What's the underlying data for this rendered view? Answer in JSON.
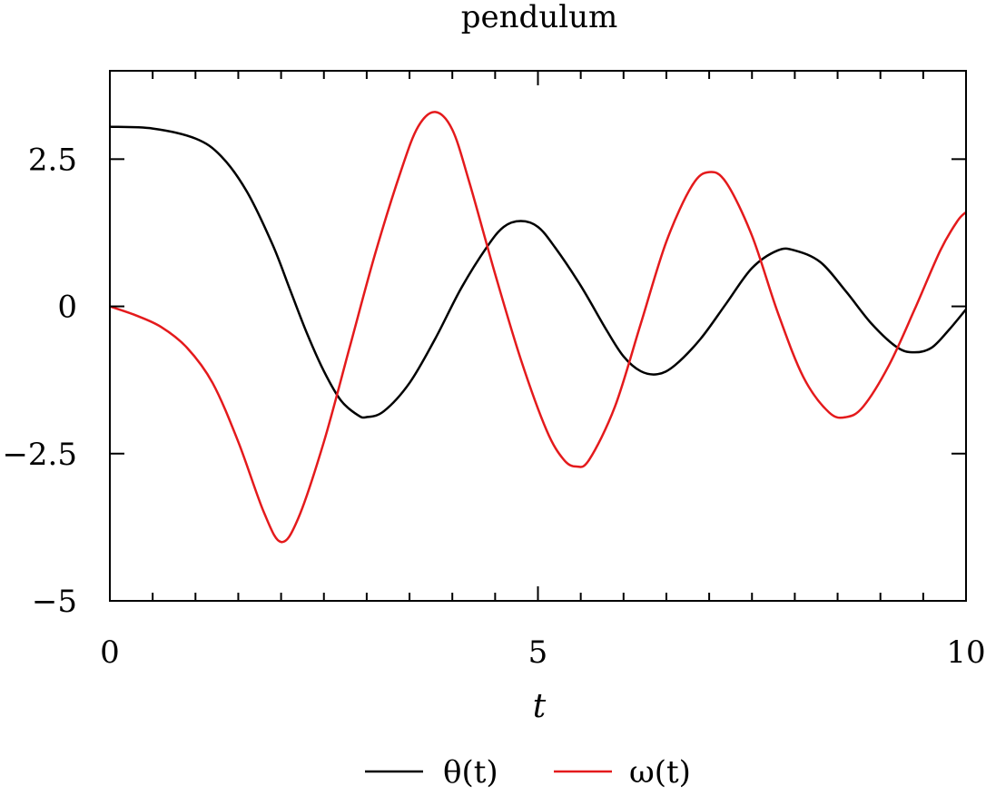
{
  "chart_data": {
    "type": "line",
    "title": "pendulum",
    "xlabel": "t",
    "ylabel": "",
    "xlim": [
      0,
      10
    ],
    "ylim": [
      -5,
      4
    ],
    "xticks": [
      0,
      5,
      10
    ],
    "xtick_labels": [
      "0",
      "5",
      "10"
    ],
    "yticks": [
      -5,
      -2.5,
      0,
      2.5
    ],
    "ytick_labels": [
      "−5",
      "−2.5",
      "0",
      "2.5"
    ],
    "x_minor_step": 0.5,
    "grid": false,
    "legend_position": "bottom",
    "series": [
      {
        "name": "θ(t)",
        "color": "#000000",
        "points": [
          [
            0,
            3.05
          ],
          [
            0.5,
            3.02
          ],
          [
            1.0,
            2.85
          ],
          [
            1.3,
            2.55
          ],
          [
            1.6,
            1.95
          ],
          [
            1.9,
            1.05
          ],
          [
            2.1,
            0.3
          ],
          [
            2.3,
            -0.45
          ],
          [
            2.5,
            -1.1
          ],
          [
            2.7,
            -1.6
          ],
          [
            2.9,
            -1.85
          ],
          [
            3.0,
            -1.88
          ],
          [
            3.2,
            -1.78
          ],
          [
            3.5,
            -1.3
          ],
          [
            3.8,
            -0.55
          ],
          [
            4.1,
            0.3
          ],
          [
            4.4,
            1.0
          ],
          [
            4.6,
            1.35
          ],
          [
            4.8,
            1.45
          ],
          [
            5.0,
            1.35
          ],
          [
            5.2,
            1.0
          ],
          [
            5.5,
            0.35
          ],
          [
            5.8,
            -0.4
          ],
          [
            6.0,
            -0.85
          ],
          [
            6.2,
            -1.1
          ],
          [
            6.4,
            -1.15
          ],
          [
            6.6,
            -1.0
          ],
          [
            6.9,
            -0.55
          ],
          [
            7.2,
            0.05
          ],
          [
            7.5,
            0.65
          ],
          [
            7.8,
            0.95
          ],
          [
            8.0,
            0.95
          ],
          [
            8.3,
            0.75
          ],
          [
            8.6,
            0.25
          ],
          [
            8.9,
            -0.3
          ],
          [
            9.2,
            -0.7
          ],
          [
            9.4,
            -0.78
          ],
          [
            9.6,
            -0.7
          ],
          [
            9.8,
            -0.4
          ],
          [
            10.0,
            -0.05
          ]
        ]
      },
      {
        "name": "ω(t)",
        "color": "#e41a1c",
        "points": [
          [
            0,
            0.0
          ],
          [
            0.3,
            -0.15
          ],
          [
            0.6,
            -0.35
          ],
          [
            0.9,
            -0.7
          ],
          [
            1.2,
            -1.3
          ],
          [
            1.5,
            -2.3
          ],
          [
            1.8,
            -3.5
          ],
          [
            2.0,
            -4.0
          ],
          [
            2.2,
            -3.6
          ],
          [
            2.5,
            -2.3
          ],
          [
            2.8,
            -0.7
          ],
          [
            3.1,
            0.9
          ],
          [
            3.4,
            2.3
          ],
          [
            3.6,
            3.05
          ],
          [
            3.8,
            3.3
          ],
          [
            4.0,
            3.0
          ],
          [
            4.2,
            2.1
          ],
          [
            4.5,
            0.55
          ],
          [
            4.8,
            -0.9
          ],
          [
            5.1,
            -2.1
          ],
          [
            5.3,
            -2.6
          ],
          [
            5.45,
            -2.72
          ],
          [
            5.6,
            -2.6
          ],
          [
            5.9,
            -1.7
          ],
          [
            6.2,
            -0.3
          ],
          [
            6.5,
            1.1
          ],
          [
            6.8,
            2.05
          ],
          [
            7.0,
            2.28
          ],
          [
            7.2,
            2.1
          ],
          [
            7.5,
            1.2
          ],
          [
            7.8,
            -0.1
          ],
          [
            8.1,
            -1.2
          ],
          [
            8.4,
            -1.8
          ],
          [
            8.6,
            -1.88
          ],
          [
            8.8,
            -1.7
          ],
          [
            9.1,
            -1.0
          ],
          [
            9.4,
            -0.05
          ],
          [
            9.7,
            0.95
          ],
          [
            9.9,
            1.45
          ],
          [
            10.0,
            1.6
          ]
        ]
      }
    ]
  }
}
